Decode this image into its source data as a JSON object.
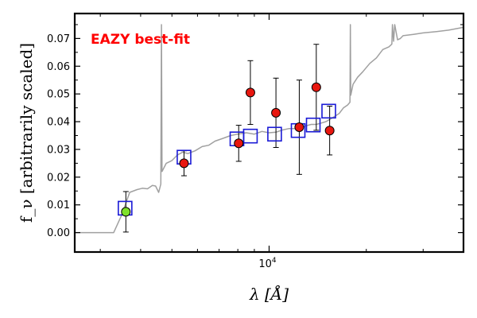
{
  "chart_data": {
    "type": "scatter",
    "annotation": "EAZY best-fit",
    "xlabel": "λ [Å]",
    "ylabel": "f_ν [arbitrarily scaled]",
    "xscale": "log",
    "xlim": [
      2500,
      40000
    ],
    "ylim": [
      -0.007,
      0.079
    ],
    "y_ticks": [
      0.0,
      0.01,
      0.02,
      0.03,
      0.04,
      0.05,
      0.06,
      0.07
    ],
    "y_tick_labels": [
      "0.00",
      "0.01",
      "0.02",
      "0.03",
      "0.04",
      "0.05",
      "0.06",
      "0.07"
    ],
    "x_ticks": [
      10000
    ],
    "x_tick_labels_base": [
      "10"
    ],
    "x_tick_labels_exp": [
      "4"
    ],
    "grid": false,
    "colors": {
      "template": "#a0a0a0",
      "observed_fill": "#e8170f",
      "upper_limit_fill": "#7ee02a",
      "model_square": "#1a1ad6",
      "annotation": "#ff0000"
    },
    "template_sed": {
      "x": [
        2500,
        3300,
        3500,
        3700,
        3900,
        4050,
        4200,
        4350,
        4450,
        4550,
        4620,
        4640,
        4660,
        4800,
        5000,
        5200,
        5400,
        5600,
        5900,
        6200,
        6500,
        6800,
        7200,
        7600,
        8000,
        8500,
        9000,
        9500,
        10000,
        10500,
        11000,
        11500,
        12000,
        12500,
        13000,
        13500,
        14000,
        14500,
        15000,
        15500,
        16000,
        16500,
        17000,
        17500,
        17800,
        17850,
        17900,
        18200,
        18800,
        19500,
        20500,
        21500,
        22500,
        23500,
        24000,
        24100,
        24300,
        24500,
        25000,
        25500,
        26000,
        28000,
        30000,
        33000,
        36000,
        40000
      ],
      "y": [
        0.0,
        0.0,
        0.0065,
        0.0145,
        0.0155,
        0.016,
        0.0158,
        0.017,
        0.0168,
        0.0145,
        0.0175,
        0.075,
        0.022,
        0.025,
        0.026,
        0.028,
        0.029,
        0.0285,
        0.0295,
        0.031,
        0.0315,
        0.033,
        0.034,
        0.035,
        0.0355,
        0.036,
        0.0355,
        0.0365,
        0.036,
        0.0362,
        0.037,
        0.0375,
        0.0375,
        0.038,
        0.0385,
        0.039,
        0.039,
        0.0395,
        0.04,
        0.041,
        0.042,
        0.043,
        0.045,
        0.046,
        0.047,
        0.075,
        0.0495,
        0.0535,
        0.056,
        0.058,
        0.061,
        0.063,
        0.066,
        0.067,
        0.068,
        0.075,
        0.069,
        0.075,
        0.0695,
        0.07,
        0.071,
        0.0715,
        0.072,
        0.0725,
        0.073,
        0.074
      ]
    },
    "observed": [
      {
        "x": 3600,
        "y": 0.0075,
        "err": 0.0073,
        "upper_limit": true
      },
      {
        "x": 5450,
        "y": 0.025,
        "err": 0.0045,
        "upper_limit": false
      },
      {
        "x": 8050,
        "y": 0.0322,
        "err": 0.0065,
        "upper_limit": false
      },
      {
        "x": 8750,
        "y": 0.0505,
        "err": 0.0115,
        "upper_limit": false
      },
      {
        "x": 10500,
        "y": 0.0432,
        "err": 0.0125,
        "upper_limit": false
      },
      {
        "x": 12400,
        "y": 0.038,
        "err": 0.017,
        "upper_limit": false
      },
      {
        "x": 14000,
        "y": 0.0524,
        "err": 0.0155,
        "upper_limit": false
      },
      {
        "x": 15400,
        "y": 0.0368,
        "err": 0.0088,
        "upper_limit": false
      }
    ],
    "model_photometry": [
      {
        "x": 3580,
        "y": 0.0088
      },
      {
        "x": 5450,
        "y": 0.0272
      },
      {
        "x": 7950,
        "y": 0.0338
      },
      {
        "x": 8750,
        "y": 0.0348
      },
      {
        "x": 10400,
        "y": 0.0355
      },
      {
        "x": 12300,
        "y": 0.0368
      },
      {
        "x": 13700,
        "y": 0.0388
      },
      {
        "x": 15300,
        "y": 0.0438
      }
    ]
  }
}
